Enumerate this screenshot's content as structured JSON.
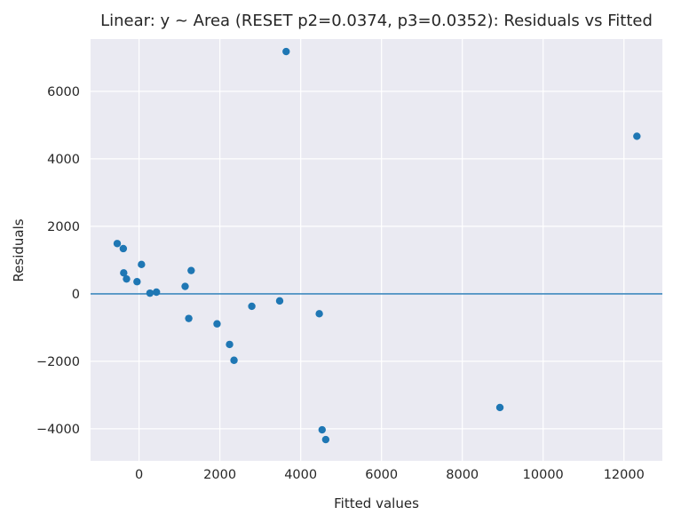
{
  "chart_data": {
    "type": "scatter",
    "title": "Linear: y ~ Area (RESET p2=0.0374, p3=0.0352): Residuals vs Fitted",
    "xlabel": "Fitted values",
    "ylabel": "Residuals",
    "xlim": [
      -1200,
      12950
    ],
    "ylim": [
      -4950,
      7550
    ],
    "xticks": [
      0,
      2000,
      4000,
      6000,
      8000,
      10000,
      12000
    ],
    "yticks": [
      -4000,
      -2000,
      0,
      2000,
      4000,
      6000
    ],
    "xtick_labels": [
      "0",
      "2000",
      "4000",
      "6000",
      "8000",
      "10000",
      "12000"
    ],
    "ytick_labels": [
      "−4000",
      "−2000",
      "0",
      "2000",
      "4000",
      "6000"
    ],
    "grid": true,
    "reference_line_y": 0,
    "point_color": "#1f77b4",
    "background_color": "#eaeaf2",
    "points": [
      {
        "x": -540,
        "y": 1490
      },
      {
        "x": -390,
        "y": 1340
      },
      {
        "x": -380,
        "y": 620
      },
      {
        "x": -310,
        "y": 440
      },
      {
        "x": -50,
        "y": 360
      },
      {
        "x": 60,
        "y": 870
      },
      {
        "x": 270,
        "y": 20
      },
      {
        "x": 430,
        "y": 50
      },
      {
        "x": 1140,
        "y": 220
      },
      {
        "x": 1230,
        "y": -730
      },
      {
        "x": 1290,
        "y": 690
      },
      {
        "x": 1930,
        "y": -890
      },
      {
        "x": 2240,
        "y": -1500
      },
      {
        "x": 2350,
        "y": -1970
      },
      {
        "x": 2790,
        "y": -370
      },
      {
        "x": 3480,
        "y": -210
      },
      {
        "x": 3640,
        "y": 7180
      },
      {
        "x": 4460,
        "y": -590
      },
      {
        "x": 4530,
        "y": -4030
      },
      {
        "x": 4620,
        "y": -4320
      },
      {
        "x": 8930,
        "y": -3370
      },
      {
        "x": 12320,
        "y": 4670
      }
    ]
  }
}
